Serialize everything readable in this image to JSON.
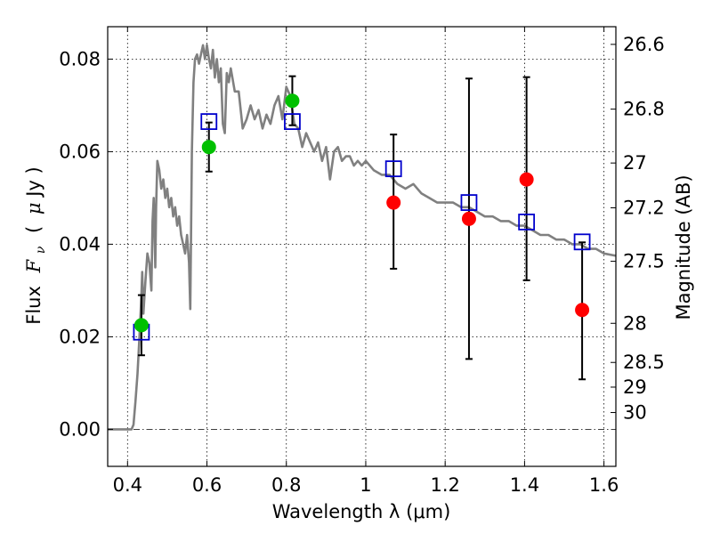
{
  "chart_data": {
    "type": "scatter",
    "title": "",
    "xlabel": "Wavelength  λ (μm)",
    "ylabel": "Flux  F_ν  ( μJy )",
    "ylabel_parts": {
      "flux": "Flux",
      "f": "F",
      "nu": "ν",
      "open": "(",
      "mu": "μ",
      "unit": "Jy )"
    },
    "y2label": "Magnitude (AB)",
    "xlim": [
      0.35,
      1.63
    ],
    "ylim": [
      -0.008,
      0.087
    ],
    "grid": true,
    "x_ticks": [
      {
        "value": 0.4,
        "label": "0.4"
      },
      {
        "value": 0.6,
        "label": "0.6"
      },
      {
        "value": 0.8,
        "label": "0.8"
      },
      {
        "value": 1.0,
        "label": "1"
      },
      {
        "value": 1.2,
        "label": "1.2"
      },
      {
        "value": 1.4,
        "label": "1.4"
      },
      {
        "value": 1.6,
        "label": "1.6"
      }
    ],
    "y_ticks": [
      {
        "value": 0.0,
        "label": "0.00"
      },
      {
        "value": 0.02,
        "label": "0.02"
      },
      {
        "value": 0.04,
        "label": "0.04"
      },
      {
        "value": 0.06,
        "label": "0.06"
      },
      {
        "value": 0.08,
        "label": "0.08"
      }
    ],
    "mag_ticks": [
      {
        "value": 26.6,
        "label": "26.6"
      },
      {
        "value": 26.8,
        "label": "26.8"
      },
      {
        "value": 27.0,
        "label": "27"
      },
      {
        "value": 27.2,
        "label": "27.2"
      },
      {
        "value": 27.5,
        "label": "27.5"
      },
      {
        "value": 28.0,
        "label": "28"
      },
      {
        "value": 28.5,
        "label": "28.5"
      },
      {
        "value": 29.0,
        "label": "29"
      },
      {
        "value": 30.0,
        "label": "30"
      }
    ],
    "zero_point_ujy": 0.0363,
    "series": [
      {
        "name": "model_sed",
        "kind": "line",
        "color": "#808080",
        "x": [
          0.35,
          0.41,
          0.415,
          0.42,
          0.425,
          0.43,
          0.435,
          0.437,
          0.44,
          0.445,
          0.45,
          0.455,
          0.46,
          0.463,
          0.466,
          0.47,
          0.472,
          0.475,
          0.48,
          0.485,
          0.49,
          0.495,
          0.5,
          0.505,
          0.51,
          0.515,
          0.52,
          0.525,
          0.53,
          0.535,
          0.54,
          0.545,
          0.55,
          0.555,
          0.558,
          0.562,
          0.566,
          0.57,
          0.575,
          0.58,
          0.585,
          0.59,
          0.595,
          0.6,
          0.605,
          0.61,
          0.615,
          0.62,
          0.625,
          0.63,
          0.635,
          0.64,
          0.645,
          0.65,
          0.655,
          0.66,
          0.67,
          0.68,
          0.69,
          0.7,
          0.71,
          0.72,
          0.73,
          0.74,
          0.75,
          0.76,
          0.77,
          0.78,
          0.79,
          0.8,
          0.81,
          0.82,
          0.83,
          0.84,
          0.85,
          0.86,
          0.87,
          0.88,
          0.89,
          0.9,
          0.91,
          0.92,
          0.93,
          0.94,
          0.95,
          0.96,
          0.97,
          0.98,
          0.99,
          1.0,
          1.02,
          1.04,
          1.06,
          1.08,
          1.1,
          1.12,
          1.14,
          1.16,
          1.18,
          1.2,
          1.22,
          1.24,
          1.26,
          1.28,
          1.3,
          1.32,
          1.34,
          1.36,
          1.38,
          1.4,
          1.42,
          1.44,
          1.46,
          1.48,
          1.5,
          1.52,
          1.54,
          1.56,
          1.58,
          1.6,
          1.63
        ],
        "y": [
          0.0,
          0.0,
          0.001,
          0.006,
          0.012,
          0.02,
          0.029,
          0.034,
          0.025,
          0.032,
          0.038,
          0.036,
          0.03,
          0.045,
          0.05,
          0.035,
          0.048,
          0.058,
          0.056,
          0.052,
          0.054,
          0.05,
          0.052,
          0.048,
          0.05,
          0.046,
          0.048,
          0.044,
          0.046,
          0.042,
          0.04,
          0.038,
          0.042,
          0.036,
          0.026,
          0.06,
          0.075,
          0.08,
          0.081,
          0.079,
          0.081,
          0.083,
          0.08,
          0.083,
          0.08,
          0.078,
          0.082,
          0.076,
          0.08,
          0.075,
          0.078,
          0.066,
          0.064,
          0.077,
          0.075,
          0.078,
          0.073,
          0.073,
          0.065,
          0.067,
          0.07,
          0.067,
          0.069,
          0.065,
          0.068,
          0.066,
          0.07,
          0.072,
          0.067,
          0.074,
          0.072,
          0.066,
          0.065,
          0.061,
          0.064,
          0.062,
          0.06,
          0.062,
          0.058,
          0.061,
          0.054,
          0.06,
          0.061,
          0.058,
          0.059,
          0.059,
          0.057,
          0.058,
          0.057,
          0.058,
          0.056,
          0.055,
          0.055,
          0.053,
          0.052,
          0.053,
          0.051,
          0.05,
          0.049,
          0.049,
          0.049,
          0.048,
          0.048,
          0.047,
          0.046,
          0.046,
          0.045,
          0.045,
          0.044,
          0.044,
          0.043,
          0.042,
          0.042,
          0.041,
          0.041,
          0.04,
          0.04,
          0.039,
          0.039,
          0.038,
          0.0375
        ]
      },
      {
        "name": "model_bandpass",
        "kind": "square",
        "color": "#0000cc",
        "x": [
          0.435,
          0.605,
          0.815,
          1.07,
          1.26,
          1.405,
          1.545
        ],
        "y": [
          0.021,
          0.0665,
          0.0665,
          0.0563,
          0.049,
          0.0448,
          0.0405
        ]
      },
      {
        "name": "observed_optical",
        "kind": "circle",
        "color": "#00c000",
        "x": [
          0.435,
          0.605,
          0.815
        ],
        "y": [
          0.0225,
          0.061,
          0.071
        ],
        "yerr_low": [
          0.016,
          0.0557,
          0.0657
        ],
        "yerr_high": [
          0.029,
          0.0663,
          0.0763
        ]
      },
      {
        "name": "observed_nir",
        "kind": "circle",
        "color": "#ff0000",
        "x": [
          1.07,
          1.26,
          1.405,
          1.545
        ],
        "y": [
          0.049,
          0.0455,
          0.054,
          0.0258
        ],
        "yerr_low": [
          0.0347,
          0.0152,
          0.0322,
          0.0108
        ],
        "yerr_high": [
          0.0637,
          0.0758,
          0.0761,
          0.0404
        ]
      }
    ]
  }
}
